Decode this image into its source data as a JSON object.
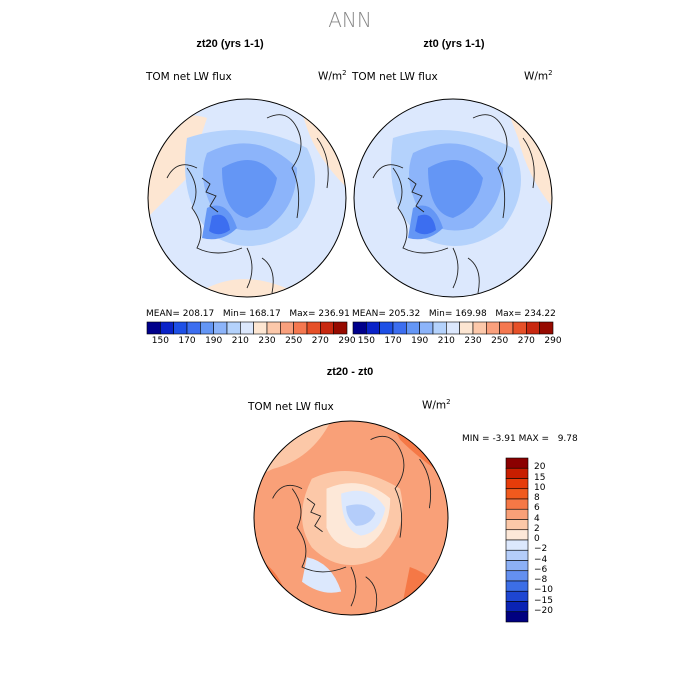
{
  "title": "ANN",
  "panels": [
    {
      "title": "zt20 (yrs 1-1)",
      "field": "TOM net LW flux",
      "units_base": "W/m",
      "units_exp": "2",
      "stats": {
        "mean_label": "MEAN=",
        "mean": "208.17",
        "min_label": "Min=",
        "min": "168.17",
        "max_label": "Max=",
        "max": "236.91"
      }
    },
    {
      "title": "zt0 (yrs 1-1)",
      "field": "TOM net LW flux",
      "units_base": "W/m",
      "units_exp": "2",
      "stats": {
        "mean_label": "MEAN=",
        "mean": "205.32",
        "min_label": "Min=",
        "min": "169.98",
        "max_label": "Max=",
        "max": "234.22"
      }
    }
  ],
  "abs_colorbar": {
    "labels": [
      "150",
      "170",
      "190",
      "210",
      "230",
      "250",
      "270",
      "290"
    ],
    "colors": [
      "#00008b",
      "#0a23c8",
      "#1e50e6",
      "#3c6ef0",
      "#6496f5",
      "#8cb4fa",
      "#b4d2fc",
      "#dce8fd",
      "#fde6d2",
      "#fcc8aa",
      "#f9a07d",
      "#f57850",
      "#e65028",
      "#c82810",
      "#960a00"
    ]
  },
  "diff_panel": {
    "title": "zt20 - zt0",
    "field": "TOM net LW flux",
    "units_base": "W/m",
    "units_exp": "2",
    "min_label": "MIN =",
    "min": "-3.91",
    "max_label": "MAX =",
    "max": "9.78"
  },
  "diff_colorbar": {
    "labels": [
      "20",
      "15",
      "10",
      "8",
      "6",
      "4",
      "2",
      "0",
      "−2",
      "−4",
      "−6",
      "−8",
      "−10",
      "−15",
      "−20"
    ],
    "colors": [
      "#8b0000",
      "#c81e00",
      "#e63c0a",
      "#f05a1e",
      "#f57846",
      "#f9a078",
      "#fcc8a8",
      "#fde8d8",
      "#dce8fd",
      "#b4cdfa",
      "#8cb0f5",
      "#6490f0",
      "#3c6ee6",
      "#1e46d2",
      "#0a23b4",
      "#000080"
    ]
  }
}
